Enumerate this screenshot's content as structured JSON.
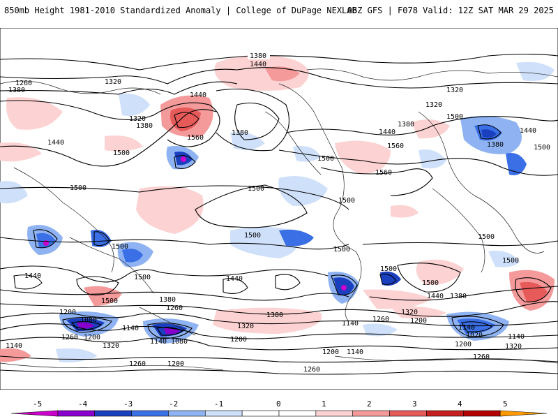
{
  "header": {
    "title_left": "850mb Height 1981-2010 Standardized Anomaly | College of DuPage NEXLAB",
    "title_right": "06Z GFS | F078 Valid: 12Z SAT MAR 29 2025"
  },
  "map": {
    "contour_labels": [
      {
        "text": "1380"
      },
      {
        "text": "1440"
      },
      {
        "text": "1260"
      },
      {
        "text": "1320"
      },
      {
        "text": "1380"
      },
      {
        "text": "1320"
      },
      {
        "text": "1380"
      },
      {
        "text": "1440"
      },
      {
        "text": "1560"
      },
      {
        "text": "1380"
      },
      {
        "text": "1440"
      },
      {
        "text": "1500"
      },
      {
        "text": "1500"
      },
      {
        "text": "1500"
      },
      {
        "text": "1560"
      },
      {
        "text": "1560"
      },
      {
        "text": "1320"
      },
      {
        "text": "1320"
      },
      {
        "text": "1380"
      },
      {
        "text": "1440"
      },
      {
        "text": "1500"
      },
      {
        "text": "1380"
      },
      {
        "text": "1440"
      },
      {
        "text": "1500"
      },
      {
        "text": "1500"
      },
      {
        "text": "1500"
      },
      {
        "text": "1500"
      },
      {
        "text": "1500"
      },
      {
        "text": "1500"
      },
      {
        "text": "1500"
      },
      {
        "text": "1500"
      },
      {
        "text": "1500"
      },
      {
        "text": "1500"
      },
      {
        "text": "1500"
      },
      {
        "text": "1440"
      },
      {
        "text": "1500"
      },
      {
        "text": "1380"
      },
      {
        "text": "1260"
      },
      {
        "text": "1440"
      },
      {
        "text": "1380"
      },
      {
        "text": "1560"
      },
      {
        "text": "1440"
      },
      {
        "text": "1380"
      },
      {
        "text": "1320"
      },
      {
        "text": "1200"
      },
      {
        "text": "1200"
      },
      {
        "text": "1080"
      },
      {
        "text": "1260"
      },
      {
        "text": "1200"
      },
      {
        "text": "1140"
      },
      {
        "text": "1320"
      },
      {
        "text": "1140"
      },
      {
        "text": "1080"
      },
      {
        "text": "1320"
      },
      {
        "text": "1200"
      },
      {
        "text": "1140"
      },
      {
        "text": "1260"
      },
      {
        "text": "1200"
      },
      {
        "text": "1140"
      },
      {
        "text": "1020"
      },
      {
        "text": "1140"
      },
      {
        "text": "1200"
      },
      {
        "text": "1320"
      },
      {
        "text": "1260"
      },
      {
        "text": "1200"
      },
      {
        "text": "1260"
      },
      {
        "text": "1200"
      },
      {
        "text": "1140"
      },
      {
        "text": "1140"
      },
      {
        "text": "1260"
      }
    ]
  },
  "colorbar": {
    "ticks": [
      "-5",
      "-4",
      "-3",
      "-2",
      "-1",
      "0",
      "1",
      "2",
      "3",
      "4",
      "5"
    ],
    "colors": [
      "#cc00cc",
      "#8800cc",
      "#1a3fbf",
      "#3a6fe6",
      "#8fb3f2",
      "#cfe0fa",
      "#ffffff",
      "#ffffff",
      "#fcd2d2",
      "#f49a9a",
      "#e65a5a",
      "#c41e1e",
      "#b30000",
      "#ff9900"
    ]
  }
}
